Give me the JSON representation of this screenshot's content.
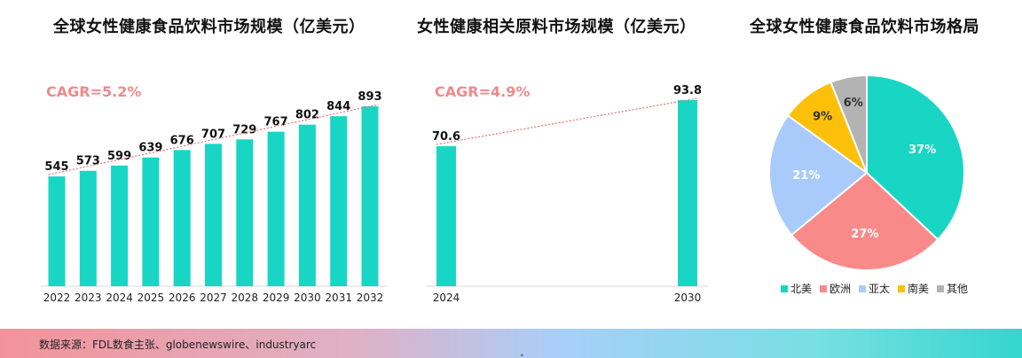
{
  "colors": {
    "bar": "#19d6c4",
    "cagr": "#f08a8a",
    "trend": "#e57373",
    "axis": "#d9d9d9",
    "label": "#111111"
  },
  "footer": {
    "source": "数据来源：FDL数食主张、globenewswire、industryarc",
    "dot": "•"
  },
  "chart_data": [
    {
      "type": "bar",
      "title": "全球女性健康食品饮料市场规模（亿美元）",
      "cagr_label": "CAGR=5.2%",
      "categories": [
        "2022",
        "2023",
        "2024",
        "2025",
        "2026",
        "2027",
        "2028",
        "2029",
        "2030",
        "2031",
        "2032"
      ],
      "values": [
        545,
        573,
        599,
        639,
        676,
        707,
        729,
        767,
        802,
        844,
        893
      ],
      "trendline": true,
      "grid": false
    },
    {
      "type": "bar",
      "title": "女性健康相关原料市场规模（亿美元）",
      "cagr_label": "CAGR=4.9%",
      "categories": [
        "2024",
        "2030"
      ],
      "values": [
        70.6,
        93.8
      ],
      "trendline": true,
      "grid": false
    },
    {
      "type": "pie",
      "title": "全球女性健康食品饮料市场格局",
      "legend_position": "bottom",
      "slices": [
        {
          "label": "北美",
          "value": 37,
          "display": "37%",
          "color": "#19d6c4"
        },
        {
          "label": "欧洲",
          "value": 27,
          "display": "27%",
          "color": "#f98a8a"
        },
        {
          "label": "亚太",
          "value": 21,
          "display": "21%",
          "color": "#a9cbfb"
        },
        {
          "label": "南美",
          "value": 9,
          "display": "9%",
          "color": "#fcc00b"
        },
        {
          "label": "其他",
          "value": 6,
          "display": "6%",
          "color": "#b3b3b3"
        }
      ]
    }
  ]
}
